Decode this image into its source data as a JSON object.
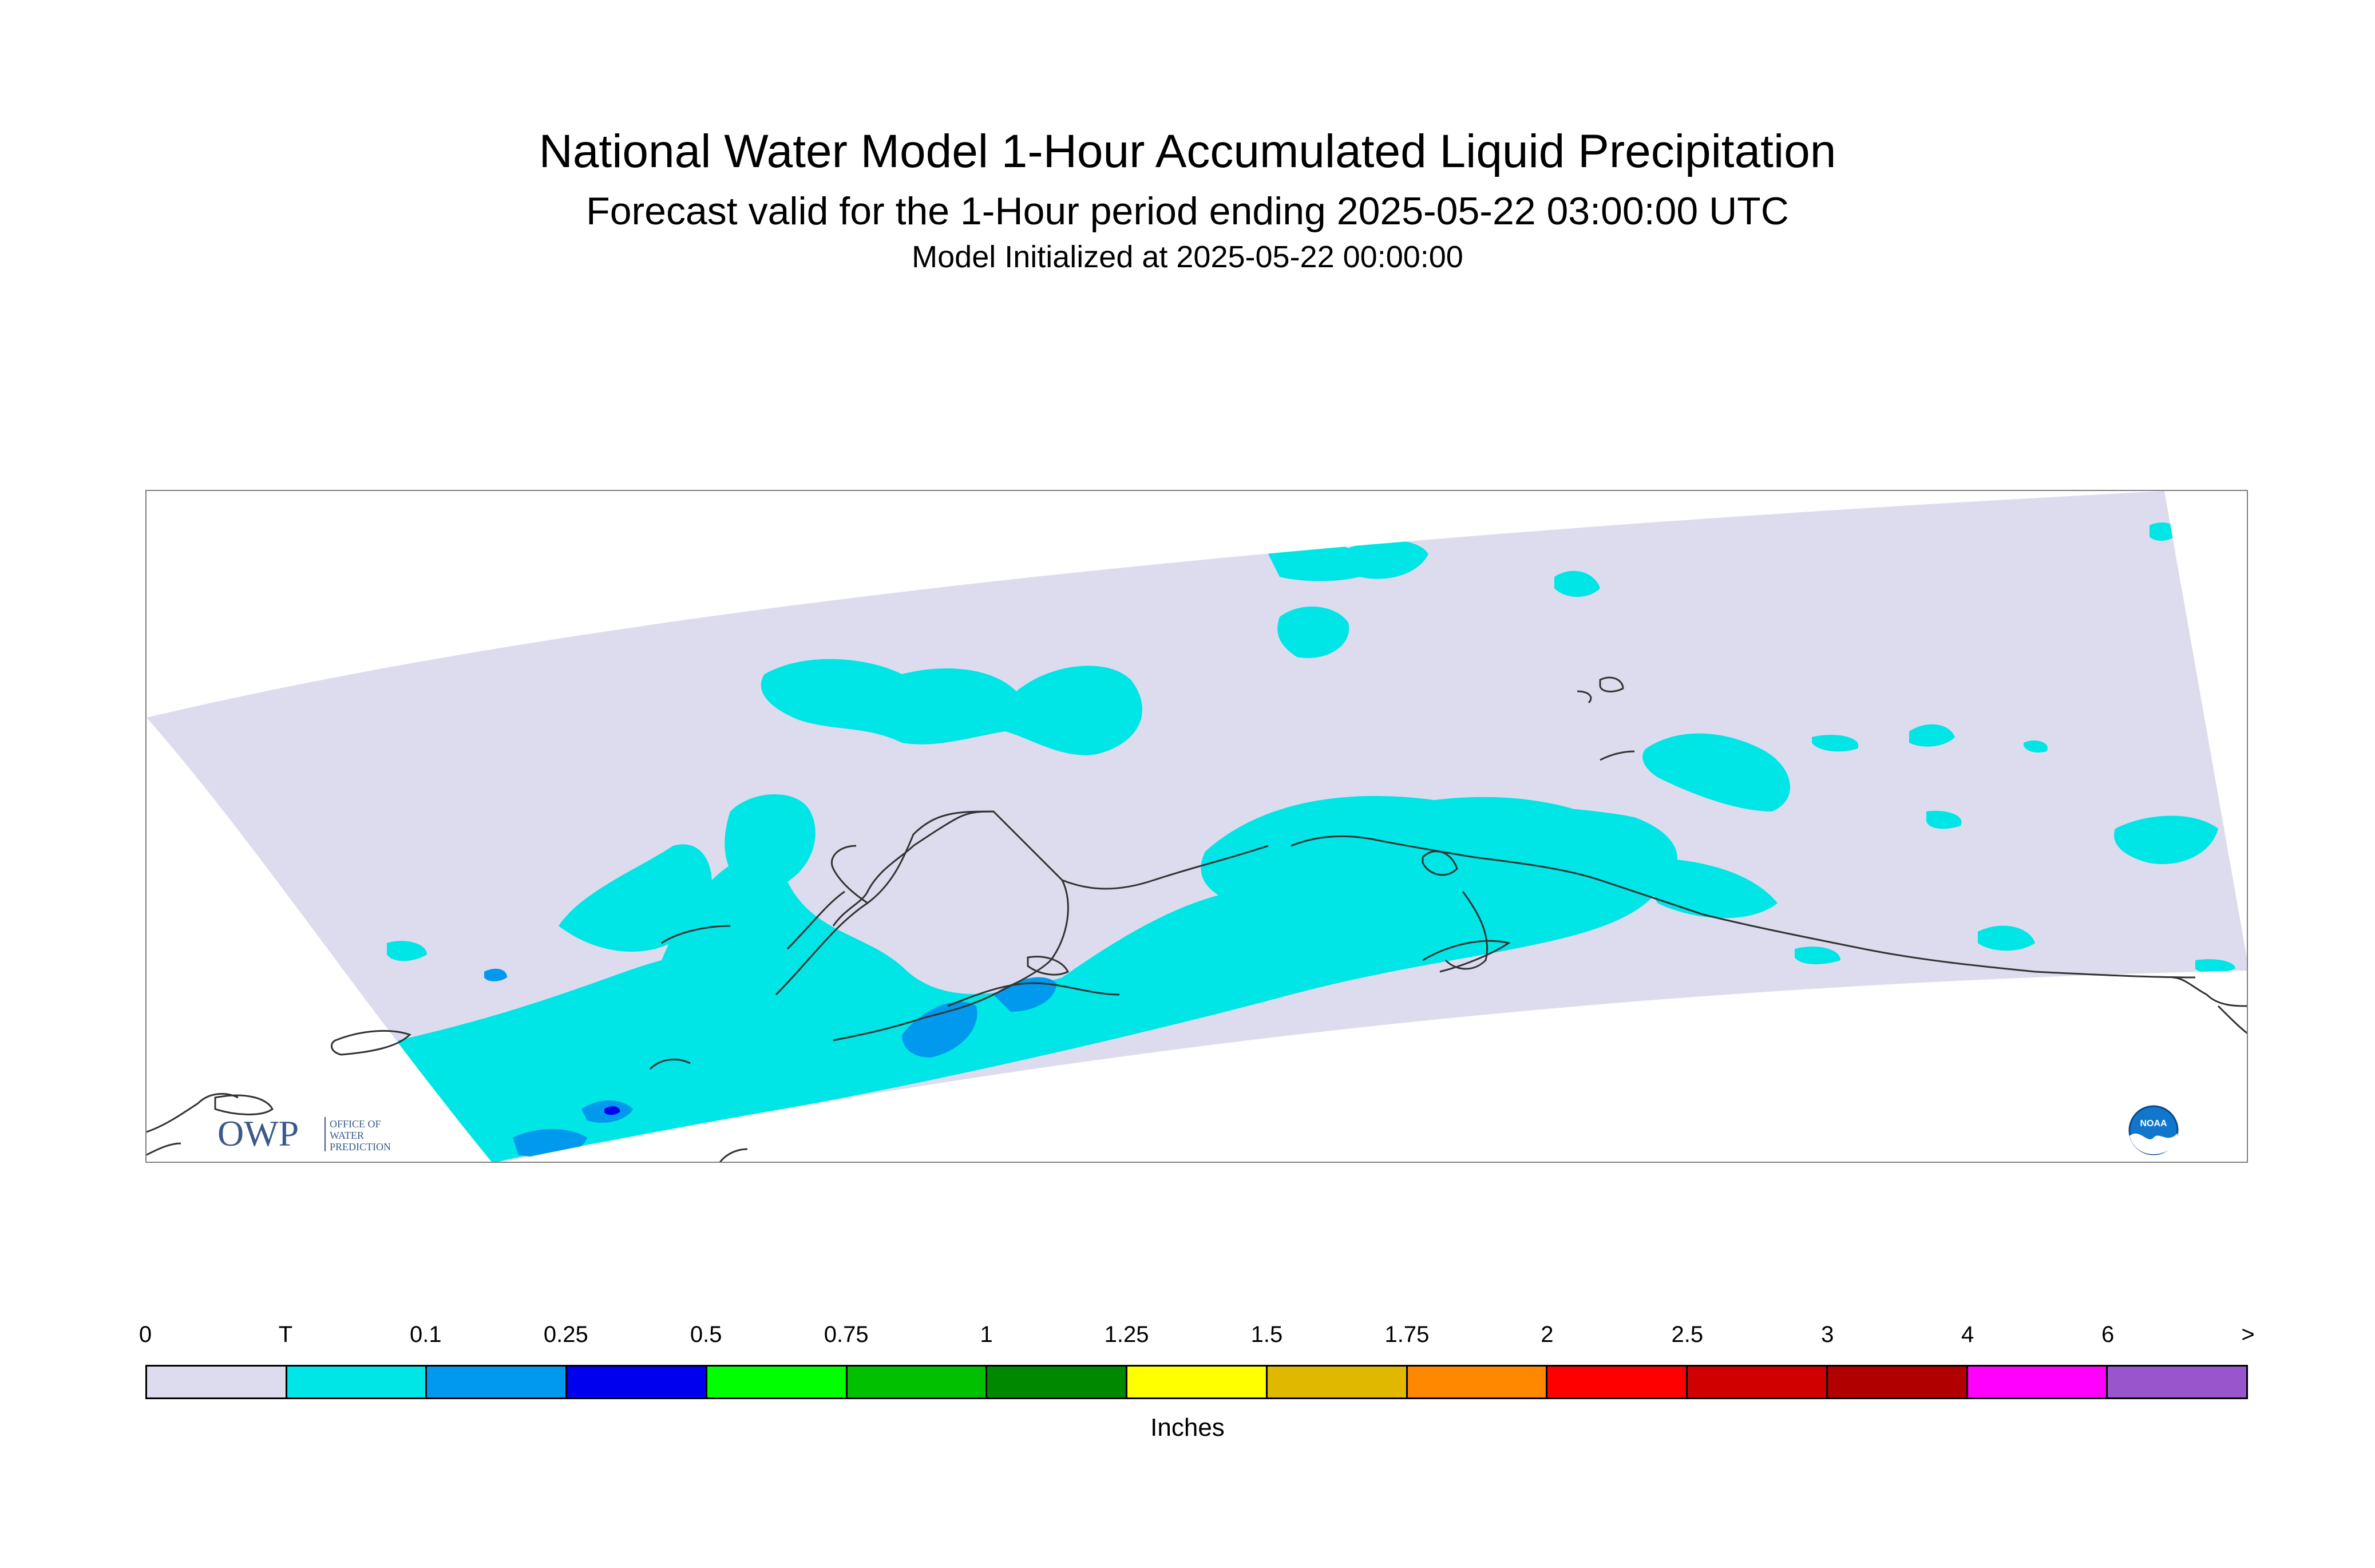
{
  "title": {
    "line1": "National Water Model 1-Hour Accumulated Liquid Precipitation",
    "line2": "Forecast valid for the 1-Hour period ending 2025-05-22 03:00:00 UTC",
    "line3": "Model Initialized at 2025-05-22 00:00:00"
  },
  "map": {
    "domain_fill_color": "#dcdcee",
    "coastline_color": "#333333",
    "trace_color": "#00e5e5",
    "light_blue_color": "#0099ee",
    "dark_blue_color": "#0000ee"
  },
  "logos": {
    "owp_text": "OWP",
    "owp_small": [
      "OFFICE OF",
      "WATER",
      "PREDICTION"
    ],
    "noaa_text": "NOAA"
  },
  "legend": {
    "labels": [
      "0",
      "T",
      "0.1",
      "0.25",
      "0.5",
      "0.75",
      "1",
      "1.25",
      "1.5",
      "1.75",
      "2",
      "2.5",
      "3",
      "4",
      "6",
      ">"
    ],
    "colors": [
      "#dcdcee",
      "#00e5e5",
      "#0099ee",
      "#0000ee",
      "#00ff00",
      "#00c000",
      "#008800",
      "#ffff00",
      "#e0b800",
      "#ff8800",
      "#ff0000",
      "#d00000",
      "#b00000",
      "#ff00ff",
      "#9955cc"
    ],
    "units": "Inches"
  }
}
